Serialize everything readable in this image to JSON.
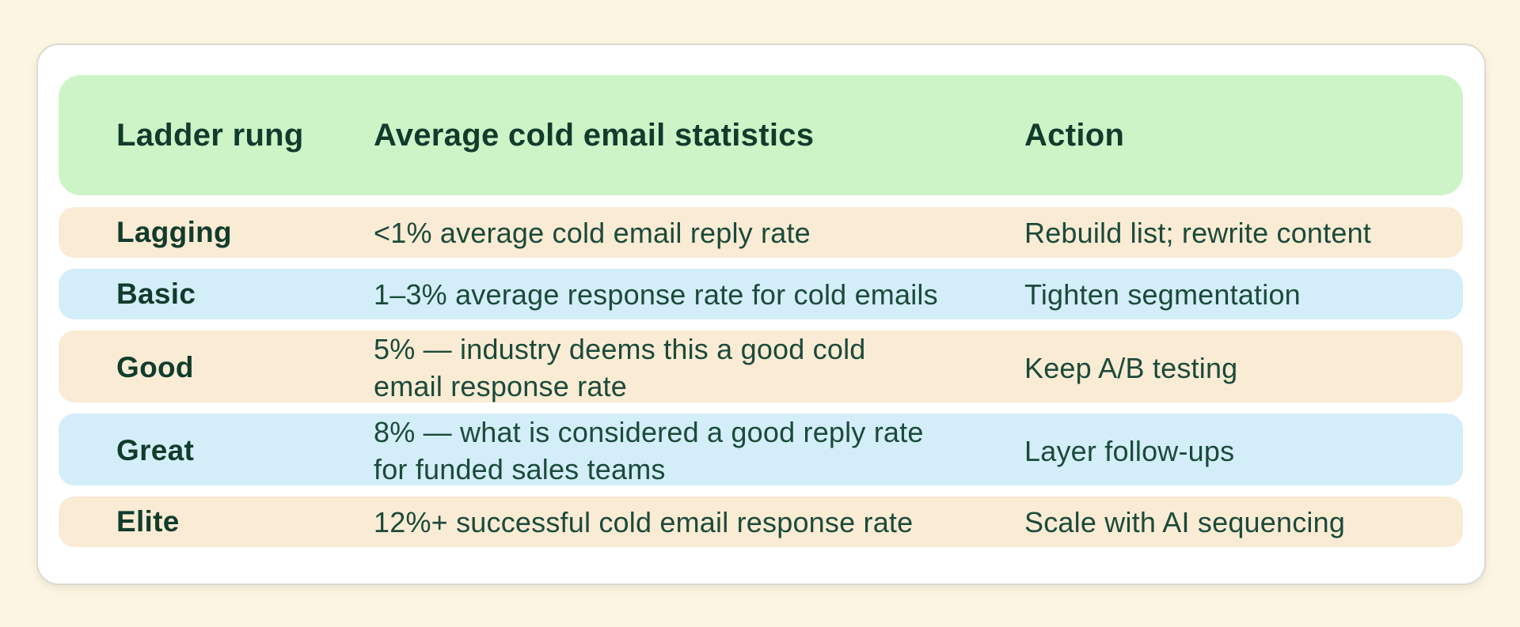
{
  "colors": {
    "page_background": "#FCF5E2",
    "card_background": "#FFFFFF",
    "card_border": "#DBDAD2",
    "header_green": "#CDF4C7",
    "row_peach": "#FAEBD4",
    "row_blue": "#D3EEF9",
    "heading_text": "#113C2C",
    "body_text": "#1B4A3A"
  },
  "chart_data": {
    "type": "table",
    "columns": [
      "Ladder rung",
      "Average cold email statistics",
      "Action"
    ],
    "rows": [
      {
        "rung": "Lagging",
        "stat": "<1% average cold email reply rate",
        "action": "Rebuild list; rewrite content",
        "row_color": "peach"
      },
      {
        "rung": "Basic",
        "stat": "1–3% average response rate for cold emails",
        "action": "Tighten segmentation",
        "row_color": "blue"
      },
      {
        "rung": "Good",
        "stat": "5% — industry deems this a good cold\nemail response rate",
        "action": "Keep A/B testing",
        "row_color": "peach"
      },
      {
        "rung": "Great",
        "stat": "8% — what is considered a good reply rate\nfor funded sales teams",
        "action": "Layer follow-ups",
        "row_color": "blue"
      },
      {
        "rung": "Elite",
        "stat": "12%+ successful cold email response rate",
        "action": "Scale with AI sequencing",
        "row_color": "peach"
      }
    ]
  }
}
